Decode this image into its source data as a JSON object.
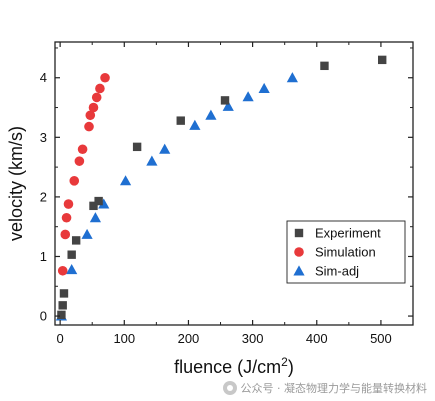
{
  "chart_data": {
    "type": "scatter",
    "title": "",
    "xlabel": "fluence (J/cm",
    "xlabel_sup": "2",
    "xlabel_close": ")",
    "ylabel": "velocity (km/s)",
    "xlim": [
      -8,
      550
    ],
    "ylim": [
      -0.15,
      4.6
    ],
    "xticks": [
      0,
      100,
      200,
      300,
      400,
      500
    ],
    "yticks": [
      0,
      1,
      2,
      3,
      4
    ],
    "grid": false,
    "legend_position": "lower-right",
    "series": [
      {
        "name": "Experiment",
        "marker": "square",
        "color": "#444444",
        "points": [
          [
            2,
            0.02
          ],
          [
            4,
            0.18
          ],
          [
            6,
            0.38
          ],
          [
            18,
            1.03
          ],
          [
            25,
            1.27
          ],
          [
            52,
            1.85
          ],
          [
            60,
            1.93
          ],
          [
            120,
            2.84
          ],
          [
            188,
            3.28
          ],
          [
            257,
            3.62
          ],
          [
            412,
            4.2
          ],
          [
            502,
            4.3
          ]
        ]
      },
      {
        "name": "Simulation",
        "marker": "circle",
        "color": "#e8393b",
        "points": [
          [
            4,
            0.76
          ],
          [
            8,
            1.37
          ],
          [
            10,
            1.65
          ],
          [
            13,
            1.88
          ],
          [
            22,
            2.27
          ],
          [
            30,
            2.6
          ],
          [
            35,
            2.8
          ],
          [
            45,
            3.18
          ],
          [
            47,
            3.37
          ],
          [
            52,
            3.5
          ],
          [
            57,
            3.67
          ],
          [
            62,
            3.82
          ],
          [
            70,
            4.0
          ]
        ]
      },
      {
        "name": "Sim-adj",
        "marker": "triangle",
        "color": "#1f6fd1",
        "points": [
          [
            2,
            0.0
          ],
          [
            18,
            0.78
          ],
          [
            42,
            1.37
          ],
          [
            55,
            1.65
          ],
          [
            68,
            1.88
          ],
          [
            102,
            2.27
          ],
          [
            143,
            2.6
          ],
          [
            163,
            2.8
          ],
          [
            210,
            3.2
          ],
          [
            235,
            3.37
          ],
          [
            262,
            3.52
          ],
          [
            293,
            3.68
          ],
          [
            318,
            3.82
          ],
          [
            362,
            4.0
          ]
        ]
      }
    ]
  },
  "watermark": {
    "text": "公众号 · 凝态物理力学与能量转换材料"
  }
}
